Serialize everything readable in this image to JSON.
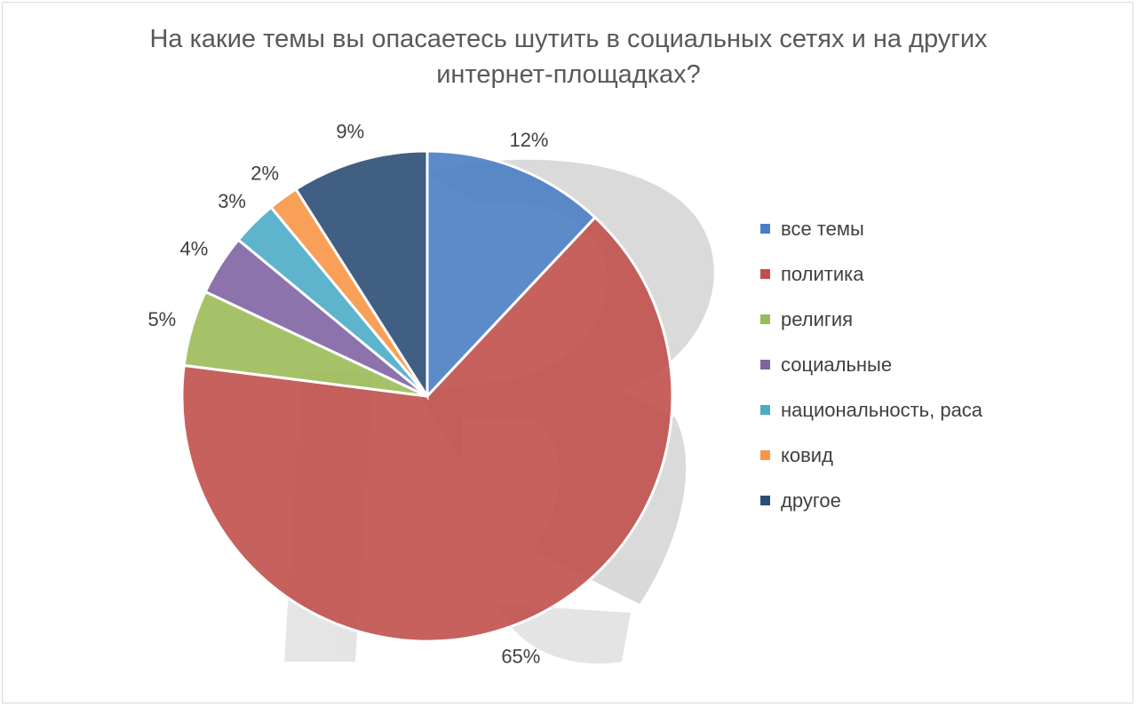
{
  "chart_data": {
    "type": "pie",
    "title": "На какие темы вы опасаетесь шутить в социальных сетях и на других интернет-площадках?",
    "title_lines": [
      "На какие темы вы опасаетесь шутить в социальных сетях и на других",
      "интернет-площадках?"
    ],
    "legend_position": "right",
    "slices": [
      {
        "label": "все темы",
        "value": 12,
        "value_label": "12%",
        "color": "#4a7ec4"
      },
      {
        "label": "политика",
        "value": 65,
        "value_label": "65%",
        "color": "#c0504d"
      },
      {
        "label": "религия",
        "value": 5,
        "value_label": "5%",
        "color": "#9bbb59"
      },
      {
        "label": "социальные",
        "value": 4,
        "value_label": "4%",
        "color": "#8064a2"
      },
      {
        "label": "национальность, раса",
        "value": 3,
        "value_label": "3%",
        "color": "#4bacc6"
      },
      {
        "label": "ковид",
        "value": 2,
        "value_label": "2%",
        "color": "#f79646"
      },
      {
        "label": "другое",
        "value": 9,
        "value_label": "9%",
        "color": "#2c4d75"
      }
    ]
  }
}
